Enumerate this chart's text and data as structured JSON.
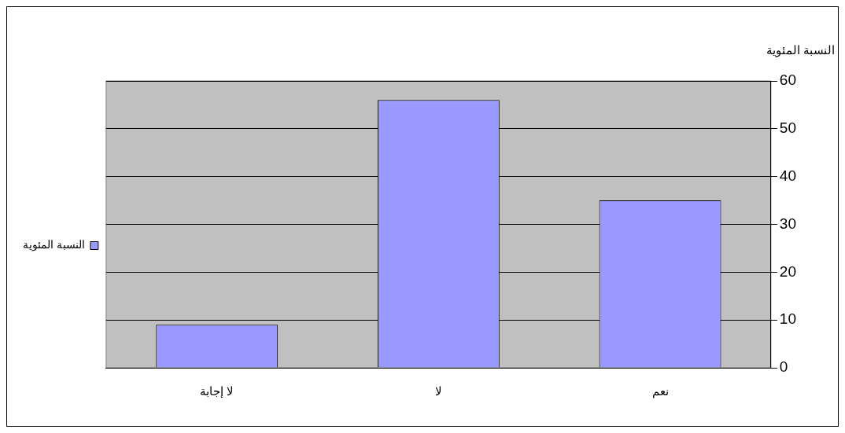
{
  "chart_data": {
    "type": "bar",
    "ylabel": "النسبة المئوية",
    "categories": [
      "لا إجابة",
      "لا",
      "نعم"
    ],
    "series": [
      {
        "name": "النسبة المئوية",
        "color": "#9999ff",
        "values": [
          9,
          56,
          35
        ]
      }
    ],
    "ylim": [
      0,
      60
    ],
    "yticks": [
      0,
      10,
      20,
      30,
      40,
      50,
      60
    ],
    "grid": "y",
    "legend": "left"
  }
}
